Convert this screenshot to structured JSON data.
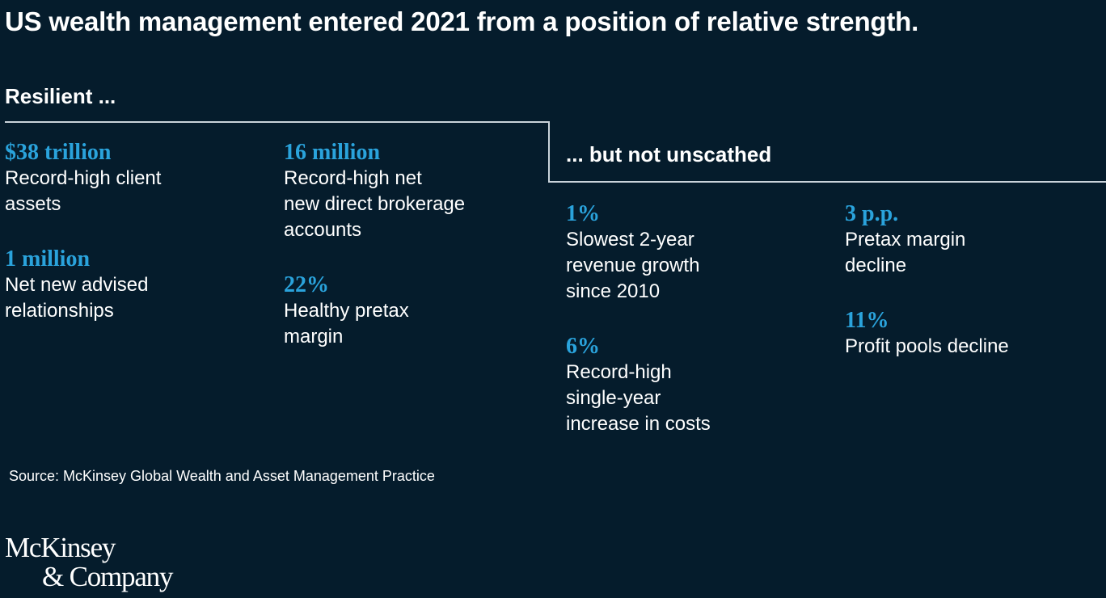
{
  "title": "US wealth management entered 2021 from a position of relative strength.",
  "left_section": {
    "heading": "Resilient ...",
    "stats": [
      {
        "value": "$38 trillion",
        "desc": "Record-high client\nassets"
      },
      {
        "value": "1 million",
        "desc": "Net new advised\nrelationships"
      },
      {
        "value": "16 million",
        "desc": "Record-high net\nnew direct brokerage\naccounts"
      },
      {
        "value": "22%",
        "desc": "Healthy pretax\nmargin"
      }
    ]
  },
  "right_section": {
    "heading": "... but not unscathed",
    "stats": [
      {
        "value": "1%",
        "desc": "Slowest 2-year\nrevenue growth\nsince 2010"
      },
      {
        "value": "6%",
        "desc": "Record-high\nsingle-year\nincrease in costs"
      },
      {
        "value": "3 p.p.",
        "desc": "Pretax margin\ndecline"
      },
      {
        "value": "11%",
        "desc": "Profit pools decline"
      }
    ]
  },
  "source": "Source: McKinsey Global Wealth and Asset Management Practice",
  "logo": {
    "line1": "McKinsey",
    "line2": "& Company"
  },
  "colors": {
    "background": "#051c2c",
    "accent": "#2aa3dc",
    "text": "#ffffff",
    "rule": "#c9d3da"
  }
}
